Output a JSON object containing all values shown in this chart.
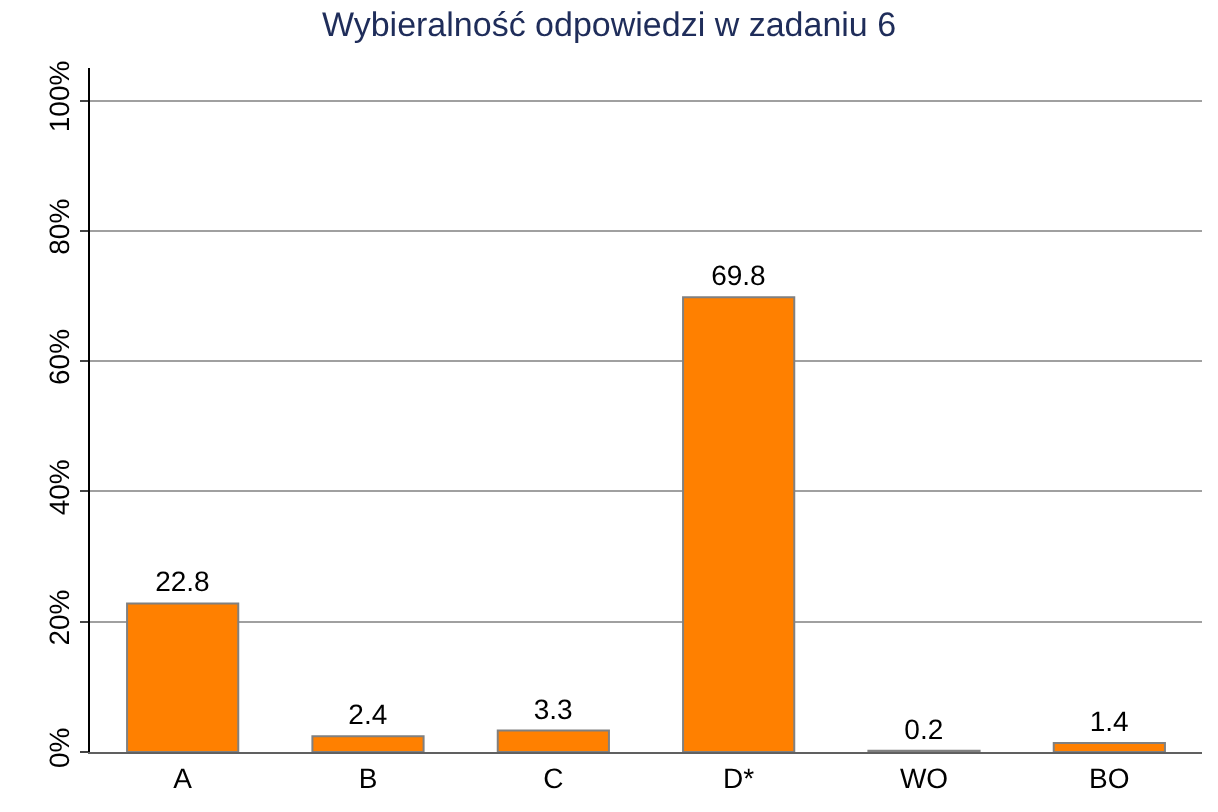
{
  "chart_data": {
    "type": "bar",
    "title": "Wybieralność odpowiedzi w zadaniu 6",
    "categories": [
      "A",
      "B",
      "C",
      "D*",
      "WO",
      "BO"
    ],
    "values": [
      22.8,
      2.4,
      3.3,
      69.8,
      0.2,
      1.4
    ],
    "color": "#ff8000",
    "ylim": [
      0,
      105
    ],
    "yticks": [
      {
        "value": 0,
        "label": "0%"
      },
      {
        "value": 20,
        "label": "20%"
      },
      {
        "value": 40,
        "label": "40%"
      },
      {
        "value": 60,
        "label": "60%"
      },
      {
        "value": 80,
        "label": "80%"
      },
      {
        "value": 100,
        "label": "100%"
      }
    ],
    "grid": "y",
    "data_labels": true
  }
}
